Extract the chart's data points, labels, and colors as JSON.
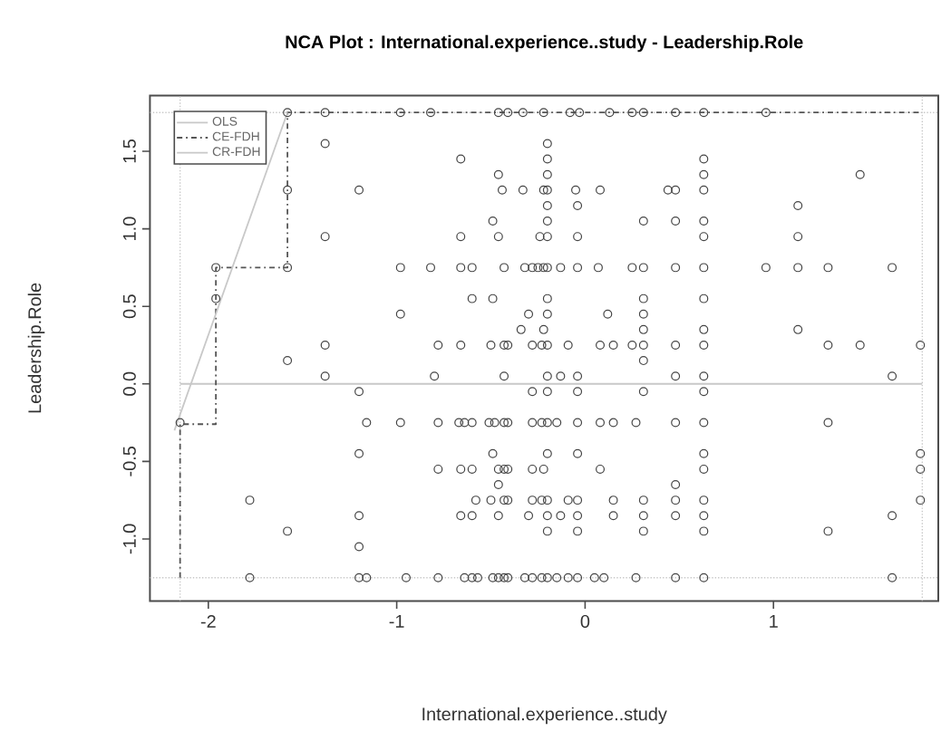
{
  "chart_data": {
    "type": "scatter",
    "title": "NCA Plot : International.experience..study - Leadership.Role",
    "xlabel": "International.experience..study",
    "ylabel": "Leadership.Role",
    "xlim": [
      -2.31,
      1.875
    ],
    "ylim": [
      -1.4,
      1.86
    ],
    "xticks": [
      -2,
      -1,
      0,
      1
    ],
    "yticks": [
      {
        "value": -1,
        "label": "-1.0"
      },
      {
        "value": -0.5,
        "label": "-0.5"
      },
      {
        "value": 0,
        "label": "0.0"
      },
      {
        "value": 0.5,
        "label": "0.5"
      },
      {
        "value": 1,
        "label": "1.0"
      },
      {
        "value": 1.5,
        "label": "1.5"
      }
    ],
    "legend": "top left",
    "marker": "circle",
    "series": [
      {
        "color": "#444444",
        "x": [
          -1.58,
          -1.38,
          -0.98,
          -0.82,
          -0.46,
          -0.41,
          -0.33,
          -0.22,
          -0.08,
          -0.03,
          0.13,
          0.25,
          0.31,
          0.48,
          0.63,
          0.96,
          -1.38,
          -0.2,
          -0.66,
          -0.2,
          0.63,
          -0.46,
          -0.2,
          0.63,
          1.46,
          -1.58,
          -1.2,
          -0.44,
          -0.33,
          -0.22,
          -0.2,
          -0.05,
          0.08,
          0.44,
          0.48,
          0.63,
          -0.2,
          -0.04,
          1.13,
          -0.49,
          -0.2,
          0.31,
          0.48,
          0.63,
          -1.38,
          -0.66,
          -0.46,
          -0.24,
          -0.2,
          -0.04,
          0.63,
          1.13,
          -1.96,
          -1.58,
          -0.98,
          -0.82,
          -0.66,
          -0.6,
          -0.43,
          -0.32,
          -0.28,
          -0.25,
          -0.22,
          -0.2,
          -0.13,
          -0.04,
          0.07,
          0.25,
          0.31,
          0.48,
          0.63,
          0.96,
          1.13,
          1.29,
          1.63,
          -1.96,
          -0.6,
          -0.49,
          -0.2,
          0.31,
          0.63,
          -0.98,
          -0.3,
          -0.2,
          0.12,
          0.31,
          -0.34,
          -0.22,
          0.31,
          0.63,
          1.13,
          -1.38,
          -0.78,
          -0.66,
          -0.5,
          -0.43,
          -0.41,
          -0.28,
          -0.23,
          -0.2,
          -0.09,
          0.08,
          0.15,
          0.25,
          0.31,
          0.48,
          0.63,
          1.29,
          1.46,
          1.78,
          -1.58,
          0.31,
          -1.38,
          -0.8,
          -0.43,
          -0.2,
          -0.13,
          -0.04,
          0.48,
          0.63,
          1.63,
          -1.2,
          -0.28,
          -0.2,
          -0.04,
          0.31,
          0.63,
          -2.15,
          -1.16,
          -0.98,
          -0.78,
          -0.67,
          -0.64,
          -0.6,
          -0.51,
          -0.48,
          -0.43,
          -0.41,
          -0.28,
          -0.23,
          -0.2,
          -0.15,
          -0.04,
          0.08,
          0.15,
          0.27,
          0.48,
          0.63,
          1.29,
          -1.2,
          -0.49,
          -0.2,
          -0.04,
          0.63,
          1.78,
          -0.78,
          -0.66,
          -0.6,
          -0.46,
          -0.43,
          -0.41,
          -0.28,
          -0.22,
          0.08,
          0.63,
          1.78,
          -0.46,
          0.48,
          -1.78,
          -0.58,
          -0.5,
          -0.43,
          -0.41,
          -0.28,
          -0.23,
          -0.2,
          -0.09,
          -0.04,
          0.15,
          0.31,
          0.48,
          0.63,
          1.78,
          -1.2,
          -0.66,
          -0.6,
          -0.46,
          -0.3,
          -0.2,
          -0.13,
          -0.04,
          0.15,
          0.31,
          0.48,
          0.63,
          1.63,
          -1.58,
          -0.2,
          -0.04,
          0.31,
          0.63,
          1.29,
          -1.2,
          -1.78,
          -1.2,
          -1.16,
          -0.95,
          -0.78,
          -0.64,
          -0.6,
          -0.57,
          -0.49,
          -0.46,
          -0.43,
          -0.41,
          -0.32,
          -0.28,
          -0.23,
          -0.2,
          -0.15,
          -0.09,
          -0.04,
          0.05,
          0.1,
          0.27,
          0.48,
          0.63,
          1.63
        ],
        "values": [
          1.75,
          1.75,
          1.75,
          1.75,
          1.75,
          1.75,
          1.75,
          1.75,
          1.75,
          1.75,
          1.75,
          1.75,
          1.75,
          1.75,
          1.75,
          1.75,
          1.55,
          1.55,
          1.45,
          1.45,
          1.45,
          1.35,
          1.35,
          1.35,
          1.35,
          1.25,
          1.25,
          1.25,
          1.25,
          1.25,
          1.25,
          1.25,
          1.25,
          1.25,
          1.25,
          1.25,
          1.15,
          1.15,
          1.15,
          1.05,
          1.05,
          1.05,
          1.05,
          1.05,
          0.95,
          0.95,
          0.95,
          0.95,
          0.95,
          0.95,
          0.95,
          0.95,
          0.75,
          0.75,
          0.75,
          0.75,
          0.75,
          0.75,
          0.75,
          0.75,
          0.75,
          0.75,
          0.75,
          0.75,
          0.75,
          0.75,
          0.75,
          0.75,
          0.75,
          0.75,
          0.75,
          0.75,
          0.75,
          0.75,
          0.75,
          0.55,
          0.55,
          0.55,
          0.55,
          0.55,
          0.55,
          0.45,
          0.45,
          0.45,
          0.45,
          0.45,
          0.35,
          0.35,
          0.35,
          0.35,
          0.35,
          0.25,
          0.25,
          0.25,
          0.25,
          0.25,
          0.25,
          0.25,
          0.25,
          0.25,
          0.25,
          0.25,
          0.25,
          0.25,
          0.25,
          0.25,
          0.25,
          0.25,
          0.25,
          0.25,
          0.15,
          0.15,
          0.05,
          0.05,
          0.05,
          0.05,
          0.05,
          0.05,
          0.05,
          0.05,
          0.05,
          -0.05,
          -0.05,
          -0.05,
          -0.05,
          -0.05,
          -0.05,
          -0.25,
          -0.25,
          -0.25,
          -0.25,
          -0.25,
          -0.25,
          -0.25,
          -0.25,
          -0.25,
          -0.25,
          -0.25,
          -0.25,
          -0.25,
          -0.25,
          -0.25,
          -0.25,
          -0.25,
          -0.25,
          -0.25,
          -0.25,
          -0.25,
          -0.25,
          -0.45,
          -0.45,
          -0.45,
          -0.45,
          -0.45,
          -0.45,
          -0.55,
          -0.55,
          -0.55,
          -0.55,
          -0.55,
          -0.55,
          -0.55,
          -0.55,
          -0.55,
          -0.55,
          -0.55,
          -0.65,
          -0.65,
          -0.75,
          -0.75,
          -0.75,
          -0.75,
          -0.75,
          -0.75,
          -0.75,
          -0.75,
          -0.75,
          -0.75,
          -0.75,
          -0.75,
          -0.75,
          -0.75,
          -0.75,
          -0.85,
          -0.85,
          -0.85,
          -0.85,
          -0.85,
          -0.85,
          -0.85,
          -0.85,
          -0.85,
          -0.85,
          -0.85,
          -0.85,
          -0.85,
          -0.95,
          -0.95,
          -0.95,
          -0.95,
          -0.95,
          -0.95,
          -1.05,
          -1.25,
          -1.25,
          -1.25,
          -1.25,
          -1.25,
          -1.25,
          -1.25,
          -1.25,
          -1.25,
          -1.25,
          -1.25,
          -1.25,
          -1.25,
          -1.25,
          -1.25,
          -1.25,
          -1.25,
          -1.25,
          -1.25,
          -1.25,
          -1.25,
          -1.25,
          -1.25,
          -1.25,
          -1.25
        ]
      },
      {
        "type": "line",
        "name": "OLS",
        "color": "#c8c8c8",
        "line_style": "solid",
        "marker": "none",
        "x": [
          -2.15,
          1.79
        ],
        "values": [
          0.0,
          0.0
        ]
      },
      {
        "type": "line",
        "name": "CE-FDH",
        "color": "#555555",
        "line_style": "dashed",
        "marker": "none",
        "x": [
          -2.15,
          -2.15,
          -1.96,
          -1.96,
          -1.58,
          -1.58,
          1.79
        ],
        "values": [
          -1.25,
          -0.26,
          -0.26,
          0.75,
          0.75,
          1.75,
          1.75
        ]
      },
      {
        "type": "line",
        "name": "CR-FDH",
        "color": "#c8c8c8",
        "line_style": "solid",
        "marker": "none",
        "x": [
          -2.18,
          -1.58
        ],
        "values": [
          -0.3,
          1.75
        ]
      }
    ],
    "ref_lines": [
      {
        "axis": "x",
        "value": -2.15,
        "color": "#c8c8c8",
        "line_style": "dotted"
      },
      {
        "axis": "x",
        "value": 1.79,
        "color": "#c8c8c8",
        "line_style": "dotted"
      },
      {
        "axis": "y",
        "value": -1.25,
        "color": "#c8c8c8",
        "line_style": "dotted"
      },
      {
        "axis": "y",
        "value": 1.75,
        "color": "#c8c8c8",
        "line_style": "dotted"
      }
    ]
  }
}
